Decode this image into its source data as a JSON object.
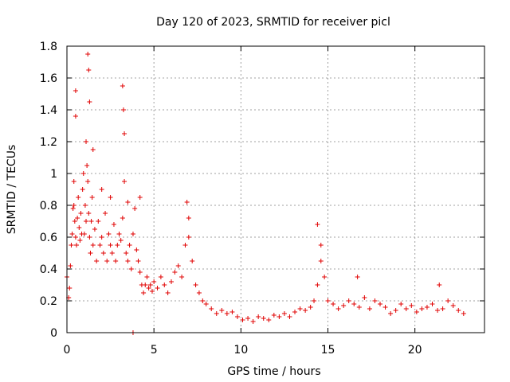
{
  "chart_data": {
    "type": "scatter",
    "title": "Day 120 of 2023, SRMTID for receiver picl",
    "xlabel": "GPS time / hours",
    "ylabel": "SRMTID / TECUs",
    "xlim": [
      0,
      24
    ],
    "ylim": [
      0,
      1.8
    ],
    "xticks": [
      0,
      5,
      10,
      15,
      20
    ],
    "xtick_labels": [
      "0",
      "5",
      "10",
      "15",
      "20"
    ],
    "yticks": [
      0,
      0.2,
      0.4,
      0.6,
      0.8,
      1.0,
      1.2,
      1.4,
      1.6,
      1.8
    ],
    "ytick_labels": [
      "0",
      "0.2",
      "0.4",
      "0.6",
      "0.8",
      "1",
      "1.2",
      "1.4",
      "1.6",
      "1.8"
    ],
    "grid": true,
    "marker": "+",
    "colors": {
      "series": "#e00000",
      "grid": "#a0a0a0",
      "axis": "#000000"
    },
    "series": [
      {
        "name": "SRMTID",
        "x": [
          0.0,
          0.1,
          0.15,
          0.2,
          0.25,
          0.3,
          0.35,
          0.4,
          0.45,
          0.5,
          0.55,
          0.6,
          0.65,
          0.7,
          0.75,
          0.8,
          0.85,
          0.9,
          0.95,
          1.0,
          1.05,
          1.1,
          1.15,
          1.2,
          1.25,
          1.3,
          1.35,
          1.4,
          1.45,
          1.5,
          1.6,
          1.7,
          1.8,
          1.9,
          2.0,
          2.1,
          2.2,
          2.3,
          2.4,
          2.5,
          2.6,
          2.7,
          2.8,
          2.9,
          3.0,
          3.1,
          3.2,
          3.3,
          3.4,
          3.5,
          3.6,
          3.7,
          3.8,
          3.9,
          4.0,
          4.1,
          4.2,
          4.3,
          4.4,
          4.5,
          4.6,
          4.7,
          4.8,
          4.9,
          5.0,
          5.2,
          5.4,
          5.6,
          5.8,
          6.0,
          6.2,
          6.4,
          6.6,
          6.8,
          7.0,
          7.2,
          7.4,
          7.6,
          7.8,
          8.0,
          8.3,
          8.6,
          8.9,
          9.2,
          9.5,
          9.8,
          10.1,
          10.4,
          10.7,
          11.0,
          11.3,
          11.6,
          11.9,
          12.2,
          12.5,
          12.8,
          13.1,
          13.4,
          13.7,
          14.0,
          14.2,
          14.4,
          14.6,
          14.8,
          15.0,
          15.3,
          15.6,
          15.9,
          16.2,
          16.5,
          16.8,
          17.1,
          17.4,
          17.7,
          18.0,
          18.3,
          18.6,
          18.9,
          19.2,
          19.5,
          19.8,
          20.1,
          20.4,
          20.7,
          21.0,
          21.3,
          21.6,
          21.9,
          22.2,
          22.5,
          22.8,
          0.5,
          0.5,
          1.2,
          1.25,
          1.3,
          3.2,
          3.25,
          3.3,
          1.5,
          0.4,
          1.1,
          2.0,
          2.5,
          3.5,
          3.8,
          4.2,
          6.9,
          7.0,
          14.4,
          14.6,
          16.7,
          21.4
        ],
        "y": [
          0.35,
          0.22,
          0.28,
          0.42,
          0.55,
          0.62,
          0.78,
          0.95,
          0.7,
          0.6,
          0.55,
          0.72,
          0.85,
          0.66,
          0.58,
          0.75,
          0.62,
          0.9,
          1.0,
          0.62,
          0.8,
          0.7,
          1.05,
          0.95,
          0.75,
          0.6,
          0.5,
          0.7,
          0.85,
          0.55,
          0.65,
          0.45,
          0.7,
          0.55,
          0.6,
          0.5,
          0.75,
          0.45,
          0.62,
          0.55,
          0.5,
          0.68,
          0.45,
          0.55,
          0.62,
          0.58,
          0.72,
          0.95,
          0.5,
          0.45,
          0.55,
          0.4,
          0.62,
          0.78,
          0.52,
          0.45,
          0.38,
          0.3,
          0.25,
          0.3,
          0.35,
          0.28,
          0.3,
          0.26,
          0.32,
          0.28,
          0.35,
          0.3,
          0.25,
          0.32,
          0.38,
          0.42,
          0.35,
          0.55,
          0.6,
          0.45,
          0.3,
          0.25,
          0.2,
          0.18,
          0.15,
          0.12,
          0.14,
          0.12,
          0.13,
          0.1,
          0.08,
          0.09,
          0.07,
          0.1,
          0.09,
          0.08,
          0.11,
          0.1,
          0.12,
          0.1,
          0.13,
          0.15,
          0.14,
          0.16,
          0.2,
          0.3,
          0.45,
          0.35,
          0.2,
          0.18,
          0.15,
          0.17,
          0.2,
          0.18,
          0.16,
          0.22,
          0.15,
          0.2,
          0.18,
          0.16,
          0.12,
          0.14,
          0.18,
          0.15,
          0.17,
          0.13,
          0.15,
          0.16,
          0.18,
          0.14,
          0.15,
          0.2,
          0.17,
          0.14,
          0.12,
          1.52,
          1.36,
          1.75,
          1.65,
          1.45,
          1.55,
          1.4,
          1.25,
          1.15,
          0.8,
          1.2,
          0.9,
          0.85,
          0.82,
          0.0,
          0.85,
          0.82,
          0.72,
          0.68,
          0.55,
          0.35,
          0.3
        ]
      }
    ]
  }
}
